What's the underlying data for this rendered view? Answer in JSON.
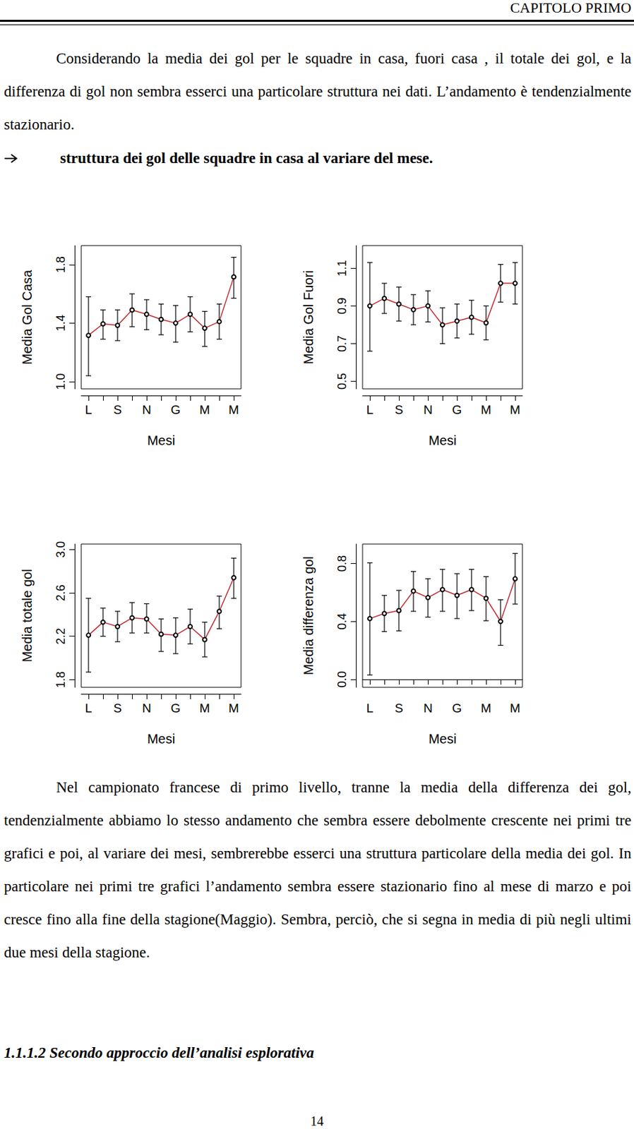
{
  "header": "CAPITOLO PRIMO",
  "intro": "Considerando la media dei gol per le squadre in casa, fuori casa , il totale dei gol, e la differenza di gol non sembra esserci una particolare struttura nei dati. L’andamento è tendenzialmente stazionario.",
  "arrow_item": "struttura dei gol delle squadre in casa al variare del mese.",
  "chart_data": [
    {
      "type": "line",
      "x_label": "Mesi",
      "y_label": "Media Gol Casa",
      "categories": [
        "L",
        null,
        "S",
        null,
        "N",
        null,
        "G",
        null,
        "M",
        null,
        "M"
      ],
      "values": [
        1.316,
        1.395,
        1.385,
        1.49,
        1.46,
        1.425,
        1.4,
        1.46,
        1.365,
        1.41,
        1.716
      ],
      "lower": [
        1.04,
        1.29,
        1.28,
        1.375,
        1.355,
        1.32,
        1.27,
        1.34,
        1.24,
        1.29,
        1.57
      ],
      "upper": [
        1.58,
        1.49,
        1.49,
        1.6,
        1.56,
        1.53,
        1.52,
        1.58,
        1.48,
        1.53,
        1.85
      ],
      "color": "#c0282d",
      "marker": "circle",
      "grid": false,
      "ylim": [
        0.95,
        1.93
      ],
      "yticks": [
        {
          "value": 1,
          "label": "1.0"
        },
        1.4,
        1.8
      ]
    },
    {
      "type": "line",
      "x_label": "Mesi",
      "y_label": "Media Gol Fuori",
      "categories": [
        "L",
        null,
        "S",
        null,
        "N",
        null,
        "G",
        null,
        "M",
        null,
        "M"
      ],
      "values": [
        0.9,
        0.94,
        0.91,
        0.88,
        0.9,
        0.8,
        0.82,
        0.84,
        0.81,
        1.02,
        1.02
      ],
      "lower": [
        0.66,
        0.86,
        0.82,
        0.8,
        0.815,
        0.7,
        0.73,
        0.75,
        0.72,
        0.92,
        0.91
      ],
      "upper": [
        1.13,
        1.02,
        1.0,
        0.96,
        0.98,
        0.89,
        0.91,
        0.93,
        0.9,
        1.12,
        1.13
      ],
      "color": "#c0282d",
      "marker": "circle",
      "grid": false,
      "ylim": [
        0.46,
        1.22
      ],
      "yticks": [
        0.5,
        0.7,
        0.9,
        1.1
      ]
    },
    {
      "type": "line",
      "x_label": "Mesi",
      "y_label": "Media totale gol",
      "categories": [
        "L",
        null,
        "S",
        null,
        "N",
        null,
        "G",
        null,
        "M",
        null,
        "M"
      ],
      "values": [
        2.21,
        2.33,
        2.29,
        2.37,
        2.36,
        2.22,
        2.21,
        2.29,
        2.17,
        2.43,
        2.74
      ],
      "lower": [
        1.87,
        2.2,
        2.15,
        2.23,
        2.23,
        2.06,
        2.04,
        2.13,
        2.01,
        2.27,
        2.55
      ],
      "upper": [
        2.55,
        2.46,
        2.43,
        2.51,
        2.5,
        2.36,
        2.37,
        2.45,
        2.33,
        2.57,
        2.92
      ],
      "color": "#c0282d",
      "marker": "circle",
      "grid": false,
      "ylim": [
        1.73,
        3.05
      ],
      "yticks": [
        1.8,
        2.2,
        2.6,
        {
          "value": 3,
          "label": "3.0"
        }
      ]
    },
    {
      "type": "line",
      "x_label": "Mesi",
      "y_label": "Media differenza gol",
      "categories": [
        "L",
        null,
        "S",
        null,
        "N",
        null,
        "G",
        null,
        "M",
        null,
        "M"
      ],
      "values": [
        0.42,
        0.455,
        0.475,
        0.61,
        0.565,
        0.62,
        0.58,
        0.62,
        0.56,
        0.4,
        0.695
      ],
      "lower": [
        0.03,
        0.33,
        0.335,
        0.47,
        0.43,
        0.47,
        0.42,
        0.475,
        0.405,
        0.235,
        0.52
      ],
      "upper": [
        0.805,
        0.58,
        0.615,
        0.745,
        0.695,
        0.76,
        0.73,
        0.76,
        0.71,
        0.55,
        0.87
      ],
      "color": "#c0282d",
      "marker": "circle",
      "grid": false,
      "ylim": [
        -0.055,
        0.935
      ],
      "yticks": [
        {
          "value": 0,
          "label": "0.0"
        },
        0.4,
        0.8
      ]
    }
  ],
  "body": "Nel campionato francese di primo livello, tranne la media della differenza dei gol, tendenzialmente abbiamo lo stesso andamento che sembra essere debolmente crescente nei primi tre grafici e poi, al variare dei mesi, sembrerebbe esserci una struttura particolare della media dei gol. In particolare nei primi tre grafici l’andamento sembra essere stazionario fino al mese di marzo e poi cresce fino alla fine della stagione(Maggio). Sembra, perciò, che si segna in media di più negli ultimi due mesi della stagione.",
  "section_heading": "1.1.1.2 Secondo approccio dell’analisi esplorativa",
  "page_number": "14"
}
